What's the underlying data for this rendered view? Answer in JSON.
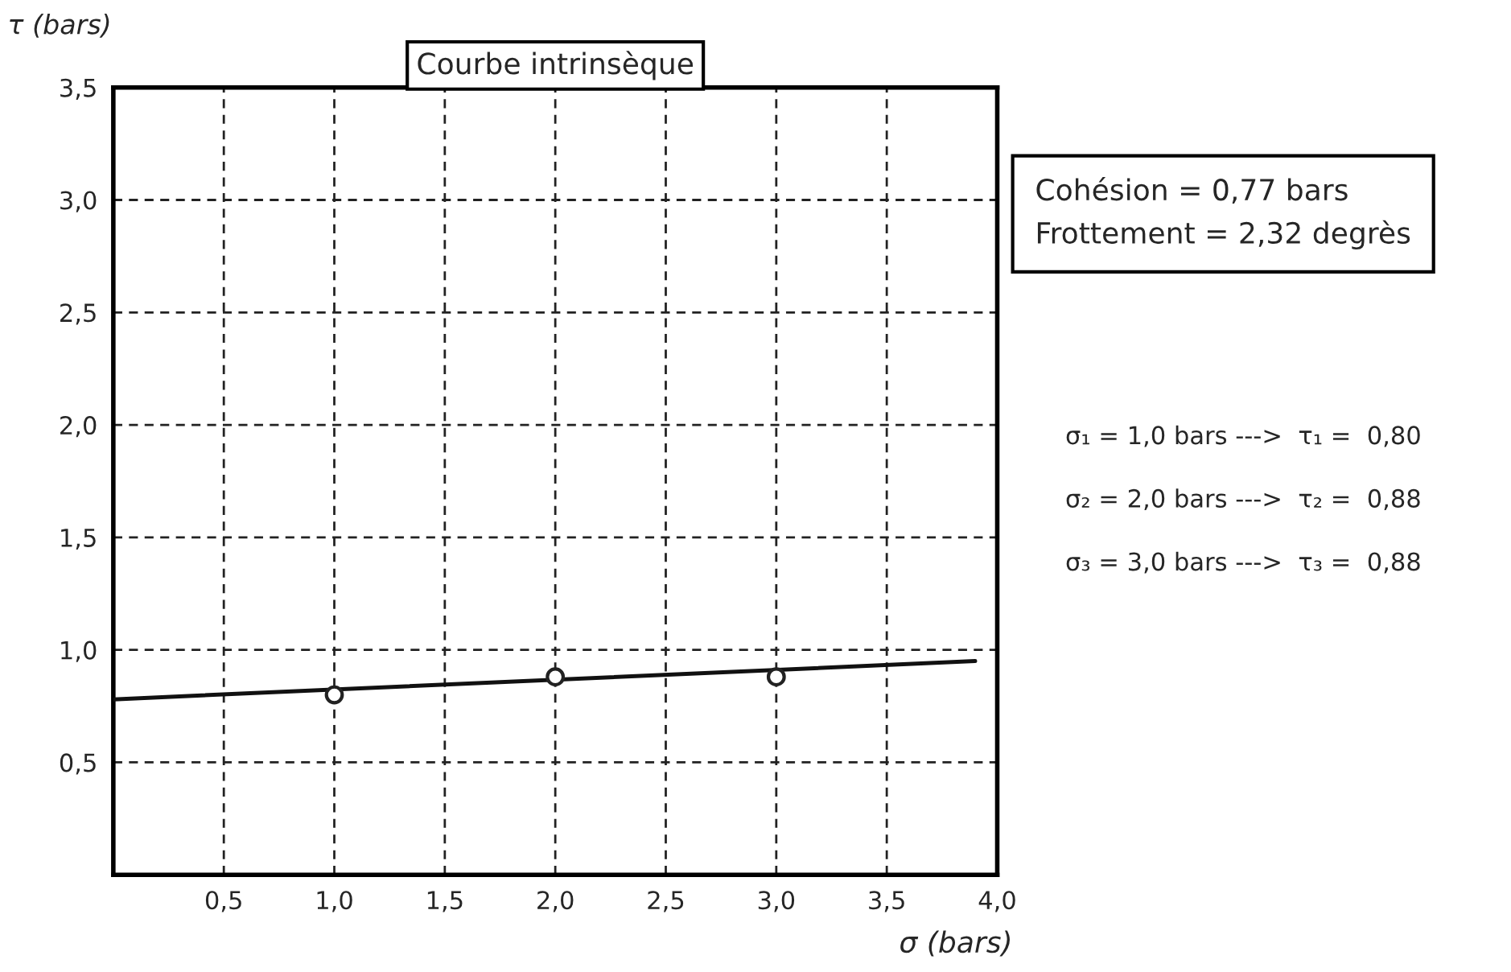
{
  "chart_data": {
    "type": "scatter",
    "title": "Courbe intrinsèque",
    "xlabel": "σ (bars)",
    "ylabel": "τ (bars)",
    "xlim": [
      0,
      4
    ],
    "ylim": [
      0,
      3.5
    ],
    "xticks": [
      {
        "value": 0.5,
        "label": "0,5"
      },
      {
        "value": 1.0,
        "label": "1,0"
      },
      {
        "value": 1.5,
        "label": "1,5"
      },
      {
        "value": 2.0,
        "label": "2,0"
      },
      {
        "value": 2.5,
        "label": "2,5"
      },
      {
        "value": 3.0,
        "label": "3,0"
      },
      {
        "value": 3.5,
        "label": "3,5"
      },
      {
        "value": 4.0,
        "label": "4,0"
      }
    ],
    "yticks": [
      {
        "value": 0.5,
        "label": "0,5"
      },
      {
        "value": 1.0,
        "label": "1,0"
      },
      {
        "value": 1.5,
        "label": "1,5"
      },
      {
        "value": 2.0,
        "label": "2,0"
      },
      {
        "value": 2.5,
        "label": "2,5"
      },
      {
        "value": 3.0,
        "label": "3,0"
      },
      {
        "value": 3.5,
        "label": "3,5"
      }
    ],
    "grid": true,
    "series": [
      {
        "color": "#222222",
        "marker": "circle",
        "x": [
          1.0,
          2.0,
          3.0
        ],
        "values": [
          0.8,
          0.88,
          0.88
        ]
      },
      {
        "type": "line",
        "color": "#111111",
        "marker": "none",
        "line_style": "solid",
        "x": [
          0,
          3.9
        ],
        "values": [
          0.78,
          0.95
        ]
      }
    ],
    "annotations": [
      "Cohésion = 0,77 bars\nFrottement = 2,32 degrès",
      "σ₁ = 1,0 bars --->  τ₁ =  0,80",
      "σ₂ = 2,0 bars --->  τ₂ =  0,88",
      "σ₃ = 3,0 bars --->  τ₃ =  0,88"
    ]
  }
}
